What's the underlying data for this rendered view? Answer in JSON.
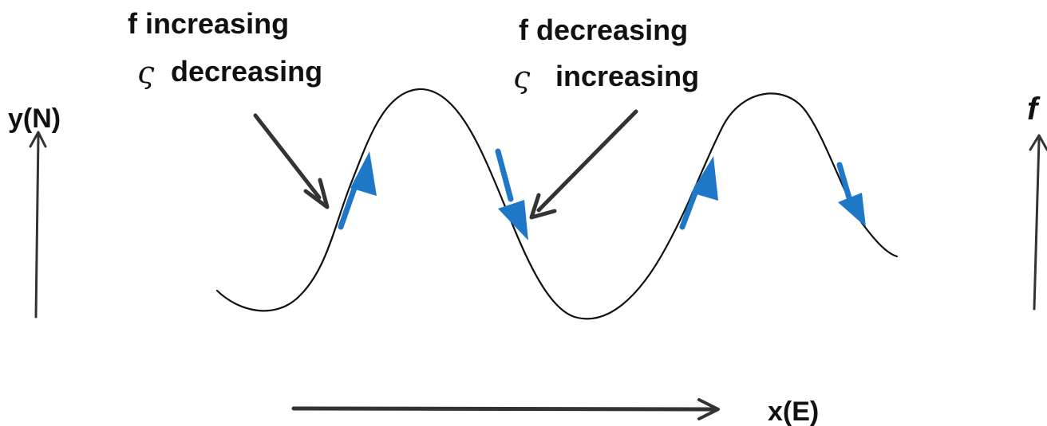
{
  "labels": {
    "left_axis": "y(N)",
    "right_axis": "f",
    "bottom_axis": "x(E)",
    "annotation_left": {
      "line1": "f increasing",
      "symbol": "ς",
      "line2": "decreasing"
    },
    "annotation_right": {
      "line1": "f decreasing",
      "symbol": "ς",
      "line2": "increasing"
    }
  },
  "colors": {
    "curve": "#111111",
    "flow_arrows": "#1f77c8",
    "pointer_arrows": "#333333"
  }
}
